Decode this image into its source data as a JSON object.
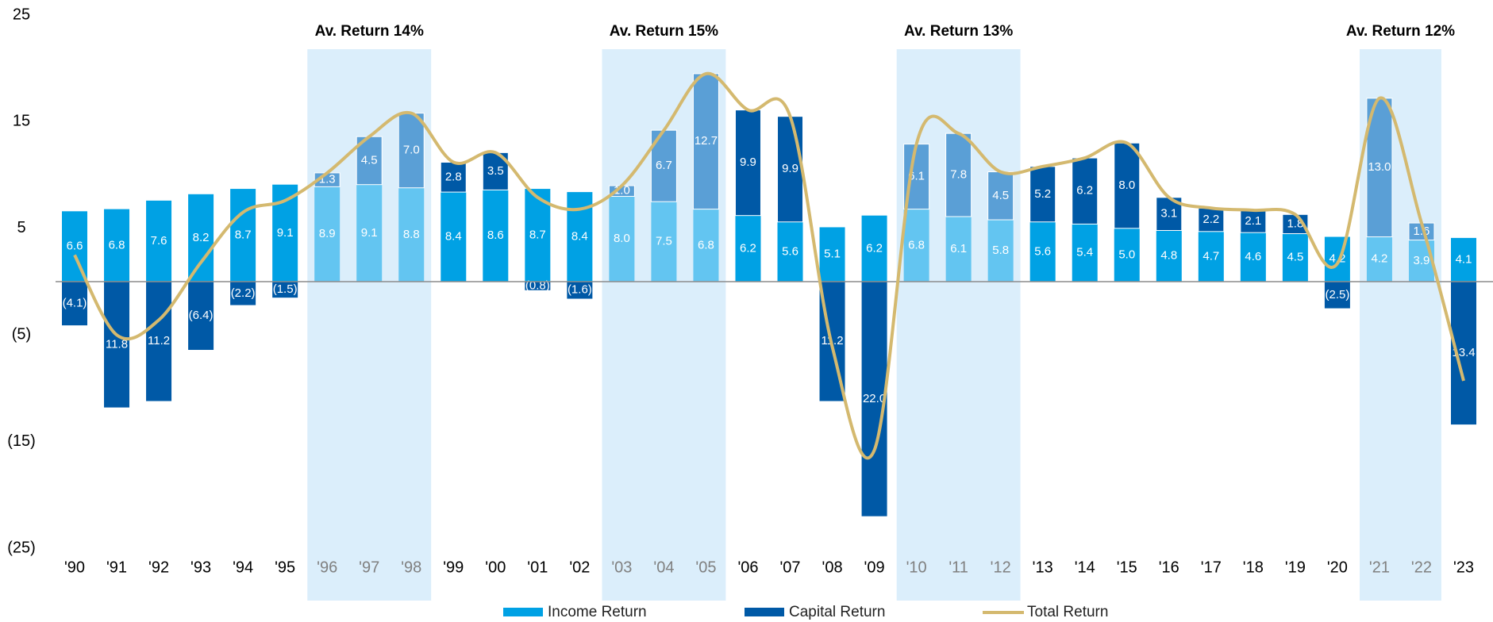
{
  "chart_data": {
    "type": "bar",
    "categories": [
      "'90",
      "'91",
      "'92",
      "'93",
      "'94",
      "'95",
      "'96",
      "'97",
      "'98",
      "'99",
      "'00",
      "'01",
      "'02",
      "'03",
      "'04",
      "'05",
      "'06",
      "'07",
      "'08",
      "'09",
      "'10",
      "'11",
      "'12",
      "'13",
      "'14",
      "'15",
      "'16",
      "'17",
      "'18",
      "'19",
      "'20",
      "'21",
      "'22",
      "'23"
    ],
    "series": [
      {
        "name": "Income Return",
        "type": "bar",
        "color": "#00a1e4",
        "highlight_color": "#63c5f1",
        "values": [
          6.6,
          6.8,
          7.6,
          8.2,
          8.7,
          9.1,
          8.9,
          9.1,
          8.8,
          8.4,
          8.6,
          8.7,
          8.4,
          8.0,
          7.5,
          6.8,
          6.2,
          5.6,
          5.1,
          6.2,
          6.8,
          6.1,
          5.8,
          5.6,
          5.4,
          5.0,
          4.8,
          4.7,
          4.6,
          4.5,
          4.2,
          4.2,
          3.9,
          4.1
        ],
        "value_labels": [
          "6.6",
          "6.8",
          "7.6",
          "8.2",
          "8.7",
          "9.1",
          "8.9",
          "9.1",
          "8.8",
          "8.4",
          "8.6",
          "8.7",
          "8.4",
          "8.0",
          "7.5",
          "6.8",
          "6.2",
          "5.6",
          "5.1",
          "6.2",
          "6.8",
          "6.1",
          "5.8",
          "5.6",
          "5.4",
          "5.0",
          "4.8",
          "4.7",
          "4.6",
          "4.5",
          "4.2",
          "4.2",
          "3.9",
          "4.1"
        ]
      },
      {
        "name": "Capital Return",
        "type": "bar",
        "color": "#0059a6",
        "highlight_color": "#5a9fd6",
        "values": [
          -4.1,
          -11.8,
          -11.2,
          -6.4,
          -2.2,
          -1.5,
          1.3,
          4.5,
          7.0,
          2.8,
          3.5,
          -0.8,
          -1.6,
          1.0,
          6.7,
          12.7,
          9.9,
          9.9,
          -11.2,
          -22.0,
          6.1,
          7.8,
          4.5,
          5.2,
          6.2,
          8.0,
          3.1,
          2.2,
          2.1,
          1.8,
          -2.5,
          13.0,
          1.6,
          -13.4
        ],
        "value_labels": [
          "(4.1)",
          "11.8",
          "11.2",
          "(6.4)",
          "(2.2)",
          "(1.5)",
          "1.3",
          "4.5",
          "7.0",
          "2.8",
          "3.5",
          "(0.8)",
          "(1.6)",
          "1.0",
          "6.7",
          "12.7",
          "9.9",
          "9.9",
          "11.2",
          "22.0",
          "6.1",
          "7.8",
          "4.5",
          "5.2",
          "6.2",
          "8.0",
          "3.1",
          "2.2",
          "2.1",
          "1.8",
          "(2.5)",
          "13.0",
          "1.6",
          "13.4"
        ]
      },
      {
        "name": "Total Return",
        "type": "line",
        "color": "#d4b96f",
        "values": [
          2.5,
          -5.0,
          -3.6,
          1.8,
          6.5,
          7.6,
          10.2,
          13.6,
          15.8,
          11.2,
          12.1,
          7.9,
          6.8,
          9.0,
          14.2,
          19.5,
          16.1,
          15.5,
          -6.1,
          -15.8,
          12.9,
          13.9,
          10.3,
          10.8,
          11.6,
          13.0,
          7.9,
          6.9,
          6.7,
          6.3,
          1.7,
          17.2,
          5.5,
          -9.3
        ]
      }
    ],
    "periods": [
      {
        "label": "Av. Return 14%",
        "from": "'96",
        "to": "'98"
      },
      {
        "label": "Av. Return 15%",
        "from": "'03",
        "to": "'05"
      },
      {
        "label": "Av. Return 13%",
        "from": "'10",
        "to": "'12"
      },
      {
        "label": "Av. Return 12%",
        "from": "'21",
        "to": "'22"
      }
    ],
    "period_color": "#dbeefb",
    "ylim": [
      -25,
      25
    ],
    "yticks": [
      {
        "value": 25,
        "label": "25"
      },
      {
        "value": 15,
        "label": "15"
      },
      {
        "value": 5,
        "label": "5"
      },
      {
        "value": -5,
        "label": "(5)"
      },
      {
        "value": -15,
        "label": "(15)"
      },
      {
        "value": -25,
        "label": "(25)"
      }
    ],
    "grid": false
  }
}
